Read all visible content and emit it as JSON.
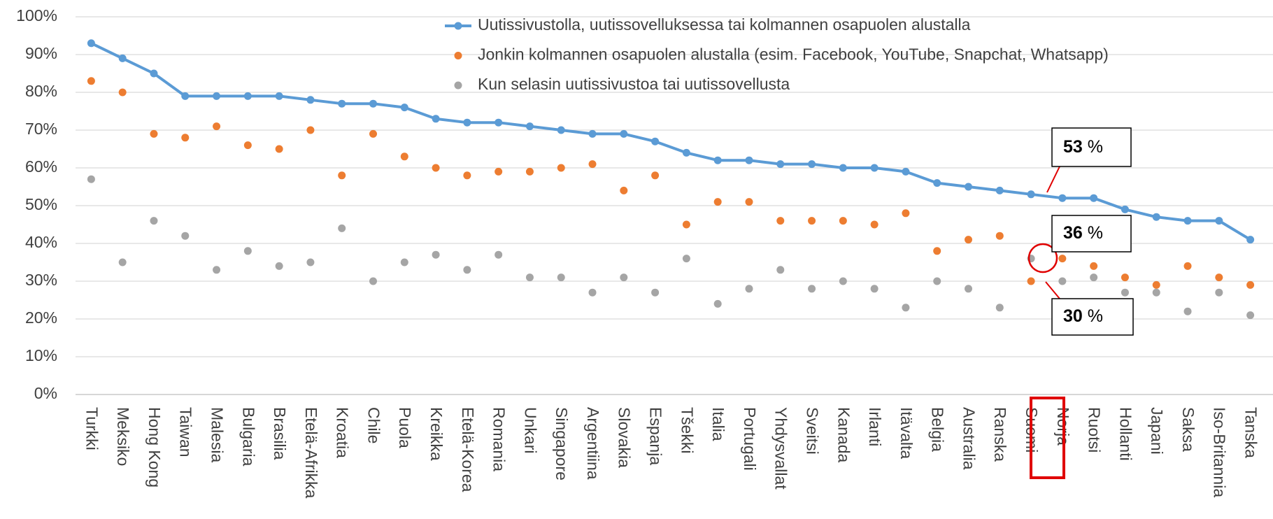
{
  "chart_data": {
    "type": "line",
    "categories": [
      "Turkki",
      "Meksiko",
      "Hong Kong",
      "Taiwan",
      "Malesia",
      "Bulgaria",
      "Brasilia",
      "Etelä-Afrikka",
      "Kroatia",
      "Chile",
      "Puola",
      "Kreikka",
      "Etelä-Korea",
      "Romania",
      "Unkari",
      "Singapore",
      "Argentiina",
      "Slovakia",
      "Espanja",
      "Tšekki",
      "Italia",
      "Portugali",
      "Yhdysvallat",
      "Sveitsi",
      "Kanada",
      "Irlanti",
      "Itävalta",
      "Belgia",
      "Australia",
      "Ranska",
      "Suomi",
      "Norja",
      "Ruotsi",
      "Hollanti",
      "Japani",
      "Saksa",
      "Iso-Britannia",
      "Tanska"
    ],
    "series": [
      {
        "name": "Uutissivustolla, uutissovelluksessa tai kolmannen osapuolen alustalla",
        "color": "#5b9bd5",
        "mode": "line+markers",
        "values": [
          93,
          89,
          85,
          79,
          79,
          79,
          79,
          78,
          77,
          77,
          76,
          73,
          72,
          72,
          71,
          70,
          69,
          69,
          67,
          64,
          62,
          62,
          61,
          61,
          60,
          60,
          59,
          56,
          55,
          54,
          53,
          52,
          52,
          49,
          47,
          46,
          46,
          41
        ]
      },
      {
        "name": "Jonkin kolmannen osapuolen alustalla (esim. Facebook, YouTube, Snapchat, Whatsapp)",
        "color": "#ed7d31",
        "mode": "markers",
        "values": [
          83,
          80,
          69,
          68,
          71,
          66,
          65,
          70,
          58,
          69,
          63,
          60,
          58,
          59,
          59,
          60,
          61,
          54,
          58,
          45,
          51,
          51,
          46,
          46,
          46,
          45,
          48,
          38,
          41,
          42,
          30,
          36,
          34,
          31,
          29,
          34,
          31,
          29
        ]
      },
      {
        "name": "Kun selasin uutissivustoa tai uutissovellusta",
        "color": "#a5a5a5",
        "mode": "markers",
        "values": [
          57,
          35,
          46,
          42,
          33,
          38,
          34,
          35,
          44,
          30,
          35,
          37,
          33,
          37,
          31,
          31,
          27,
          31,
          27,
          36,
          24,
          28,
          33,
          28,
          30,
          28,
          23,
          30,
          28,
          23,
          36,
          30,
          31,
          27,
          27,
          22,
          27,
          21
        ]
      }
    ],
    "ylim": [
      0,
      100
    ],
    "yticks": [
      {
        "value": 0,
        "label": "0%"
      },
      {
        "value": 10,
        "label": "10%"
      },
      {
        "value": 20,
        "label": "20%"
      },
      {
        "value": 30,
        "label": "30%"
      },
      {
        "value": 40,
        "label": "40%"
      },
      {
        "value": 50,
        "label": "50%"
      },
      {
        "value": 60,
        "label": "60%"
      },
      {
        "value": 70,
        "label": "70%"
      },
      {
        "value": 80,
        "label": "80%"
      },
      {
        "value": 90,
        "label": "90%"
      },
      {
        "value": 100,
        "label": "100%"
      }
    ],
    "grid": true,
    "legend": "top",
    "annotations": [
      {
        "number": "53",
        "unit": "%"
      },
      {
        "number": "36",
        "unit": "%"
      },
      {
        "number": "30",
        "unit": "%"
      }
    ]
  }
}
